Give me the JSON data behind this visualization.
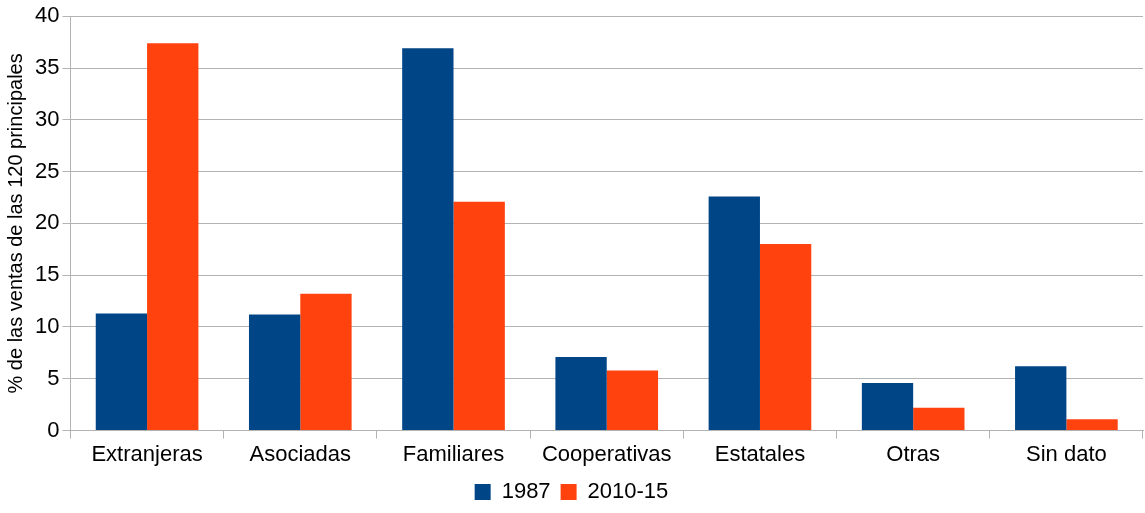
{
  "chart_data": {
    "type": "bar",
    "ylabel": "% de las ventas de las 120 principales",
    "categories": [
      "Extranjeras",
      "Asociadas",
      "Familiares",
      "Cooperativas",
      "Estatales",
      "Otras",
      "Sin dato"
    ],
    "series": [
      {
        "name": "1987",
        "color": "#004586",
        "values": [
          11.3,
          11.2,
          36.9,
          7.1,
          22.6,
          4.6,
          6.2
        ]
      },
      {
        "name": "2010-15",
        "color": "#ff420e",
        "values": [
          37.4,
          13.2,
          22.1,
          5.8,
          18.0,
          2.2,
          1.1
        ]
      }
    ],
    "ylim": [
      0,
      40
    ],
    "yticks": [
      0,
      5,
      10,
      15,
      20,
      25,
      30,
      35,
      40
    ],
    "grid": "y",
    "legend": "bottom"
  }
}
